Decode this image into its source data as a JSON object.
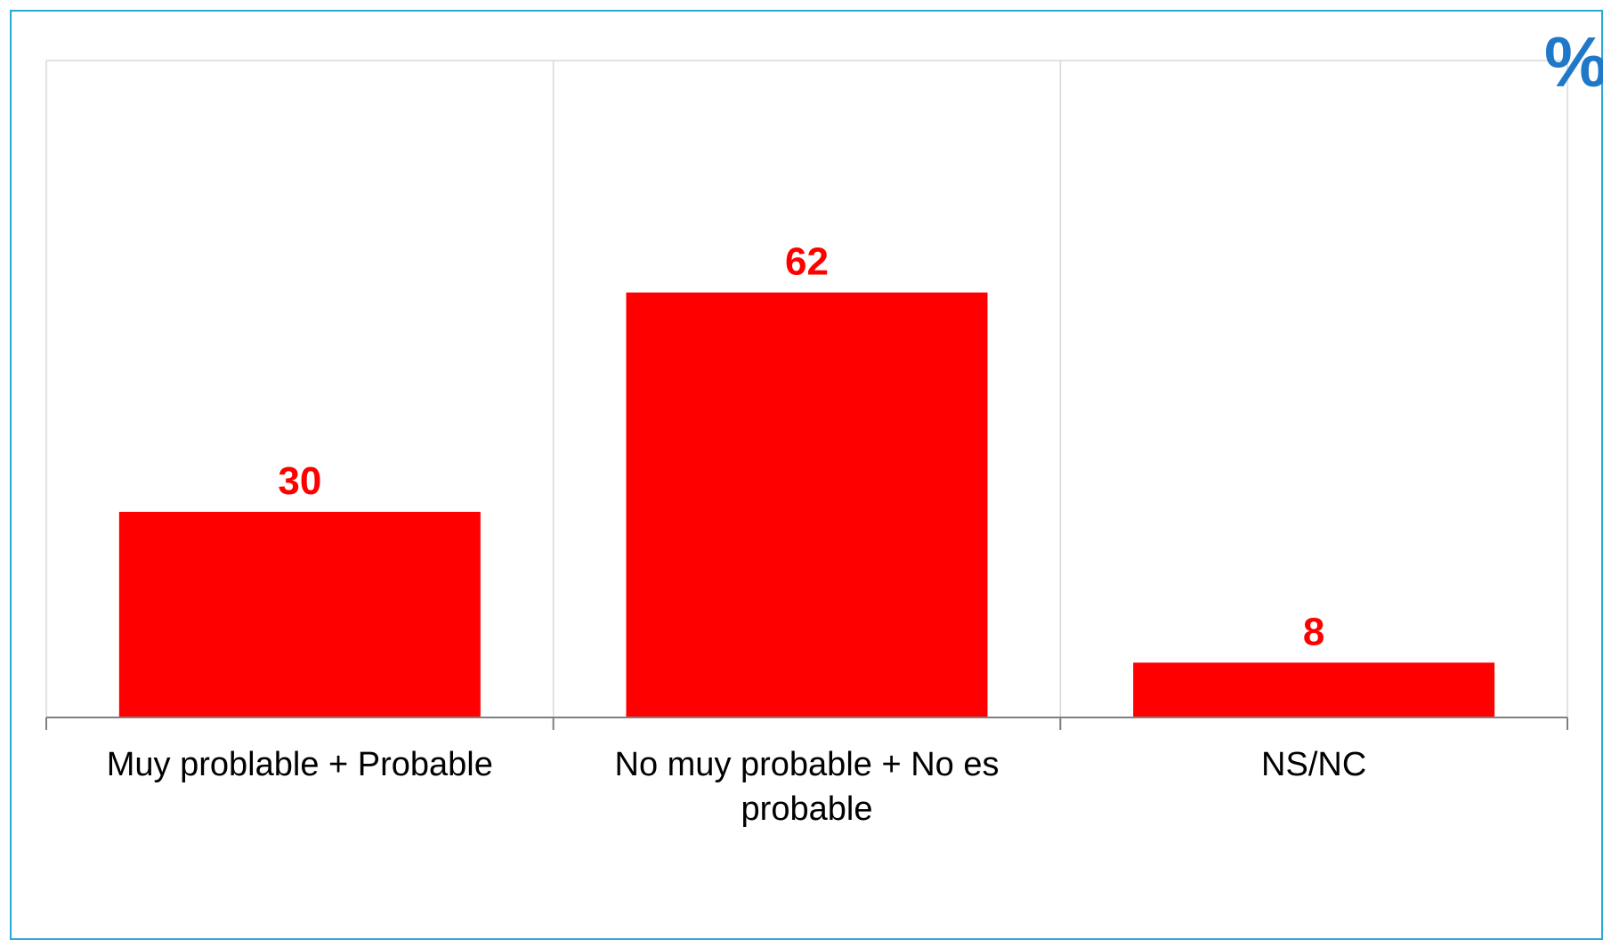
{
  "unit_mark": "%",
  "colors": {
    "bar": "#ff0000",
    "label": "#ff0000",
    "frame": "#29a9d6",
    "unit": "#1f78c8"
  },
  "chart_data": {
    "type": "bar",
    "categories": [
      "Muy problable + Probable",
      "No muy probable + No es probable",
      "NS/NC"
    ],
    "values": [
      30,
      62,
      8
    ],
    "title": "",
    "xlabel": "",
    "ylabel": "",
    "ylim": [
      0,
      100
    ],
    "grid": "vertical category separators",
    "legend": "none"
  }
}
